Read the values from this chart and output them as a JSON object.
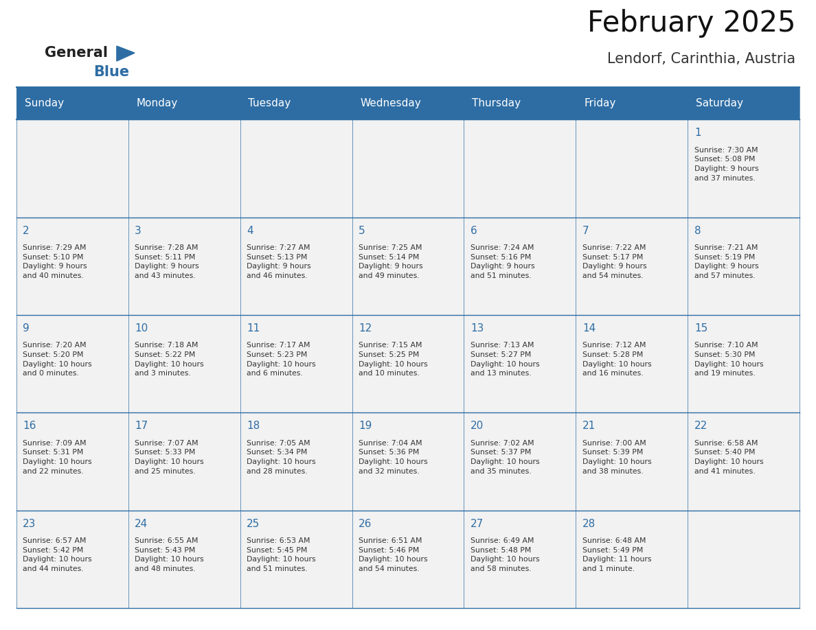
{
  "title": "February 2025",
  "subtitle": "Lendorf, Carinthia, Austria",
  "header_bg": "#2E6DA4",
  "header_text_color": "#FFFFFF",
  "cell_bg": "#F2F2F2",
  "day_headers": [
    "Sunday",
    "Monday",
    "Tuesday",
    "Wednesday",
    "Thursday",
    "Friday",
    "Saturday"
  ],
  "days_data": [
    {
      "day": 1,
      "col": 6,
      "row": 0,
      "sunrise": "7:30 AM",
      "sunset": "5:08 PM",
      "daylight": "9 hours\nand 37 minutes."
    },
    {
      "day": 2,
      "col": 0,
      "row": 1,
      "sunrise": "7:29 AM",
      "sunset": "5:10 PM",
      "daylight": "9 hours\nand 40 minutes."
    },
    {
      "day": 3,
      "col": 1,
      "row": 1,
      "sunrise": "7:28 AM",
      "sunset": "5:11 PM",
      "daylight": "9 hours\nand 43 minutes."
    },
    {
      "day": 4,
      "col": 2,
      "row": 1,
      "sunrise": "7:27 AM",
      "sunset": "5:13 PM",
      "daylight": "9 hours\nand 46 minutes."
    },
    {
      "day": 5,
      "col": 3,
      "row": 1,
      "sunrise": "7:25 AM",
      "sunset": "5:14 PM",
      "daylight": "9 hours\nand 49 minutes."
    },
    {
      "day": 6,
      "col": 4,
      "row": 1,
      "sunrise": "7:24 AM",
      "sunset": "5:16 PM",
      "daylight": "9 hours\nand 51 minutes."
    },
    {
      "day": 7,
      "col": 5,
      "row": 1,
      "sunrise": "7:22 AM",
      "sunset": "5:17 PM",
      "daylight": "9 hours\nand 54 minutes."
    },
    {
      "day": 8,
      "col": 6,
      "row": 1,
      "sunrise": "7:21 AM",
      "sunset": "5:19 PM",
      "daylight": "9 hours\nand 57 minutes."
    },
    {
      "day": 9,
      "col": 0,
      "row": 2,
      "sunrise": "7:20 AM",
      "sunset": "5:20 PM",
      "daylight": "10 hours\nand 0 minutes."
    },
    {
      "day": 10,
      "col": 1,
      "row": 2,
      "sunrise": "7:18 AM",
      "sunset": "5:22 PM",
      "daylight": "10 hours\nand 3 minutes."
    },
    {
      "day": 11,
      "col": 2,
      "row": 2,
      "sunrise": "7:17 AM",
      "sunset": "5:23 PM",
      "daylight": "10 hours\nand 6 minutes."
    },
    {
      "day": 12,
      "col": 3,
      "row": 2,
      "sunrise": "7:15 AM",
      "sunset": "5:25 PM",
      "daylight": "10 hours\nand 10 minutes."
    },
    {
      "day": 13,
      "col": 4,
      "row": 2,
      "sunrise": "7:13 AM",
      "sunset": "5:27 PM",
      "daylight": "10 hours\nand 13 minutes."
    },
    {
      "day": 14,
      "col": 5,
      "row": 2,
      "sunrise": "7:12 AM",
      "sunset": "5:28 PM",
      "daylight": "10 hours\nand 16 minutes."
    },
    {
      "day": 15,
      "col": 6,
      "row": 2,
      "sunrise": "7:10 AM",
      "sunset": "5:30 PM",
      "daylight": "10 hours\nand 19 minutes."
    },
    {
      "day": 16,
      "col": 0,
      "row": 3,
      "sunrise": "7:09 AM",
      "sunset": "5:31 PM",
      "daylight": "10 hours\nand 22 minutes."
    },
    {
      "day": 17,
      "col": 1,
      "row": 3,
      "sunrise": "7:07 AM",
      "sunset": "5:33 PM",
      "daylight": "10 hours\nand 25 minutes."
    },
    {
      "day": 18,
      "col": 2,
      "row": 3,
      "sunrise": "7:05 AM",
      "sunset": "5:34 PM",
      "daylight": "10 hours\nand 28 minutes."
    },
    {
      "day": 19,
      "col": 3,
      "row": 3,
      "sunrise": "7:04 AM",
      "sunset": "5:36 PM",
      "daylight": "10 hours\nand 32 minutes."
    },
    {
      "day": 20,
      "col": 4,
      "row": 3,
      "sunrise": "7:02 AM",
      "sunset": "5:37 PM",
      "daylight": "10 hours\nand 35 minutes."
    },
    {
      "day": 21,
      "col": 5,
      "row": 3,
      "sunrise": "7:00 AM",
      "sunset": "5:39 PM",
      "daylight": "10 hours\nand 38 minutes."
    },
    {
      "day": 22,
      "col": 6,
      "row": 3,
      "sunrise": "6:58 AM",
      "sunset": "5:40 PM",
      "daylight": "10 hours\nand 41 minutes."
    },
    {
      "day": 23,
      "col": 0,
      "row": 4,
      "sunrise": "6:57 AM",
      "sunset": "5:42 PM",
      "daylight": "10 hours\nand 44 minutes."
    },
    {
      "day": 24,
      "col": 1,
      "row": 4,
      "sunrise": "6:55 AM",
      "sunset": "5:43 PM",
      "daylight": "10 hours\nand 48 minutes."
    },
    {
      "day": 25,
      "col": 2,
      "row": 4,
      "sunrise": "6:53 AM",
      "sunset": "5:45 PM",
      "daylight": "10 hours\nand 51 minutes."
    },
    {
      "day": 26,
      "col": 3,
      "row": 4,
      "sunrise": "6:51 AM",
      "sunset": "5:46 PM",
      "daylight": "10 hours\nand 54 minutes."
    },
    {
      "day": 27,
      "col": 4,
      "row": 4,
      "sunrise": "6:49 AM",
      "sunset": "5:48 PM",
      "daylight": "10 hours\nand 58 minutes."
    },
    {
      "day": 28,
      "col": 5,
      "row": 4,
      "sunrise": "6:48 AM",
      "sunset": "5:49 PM",
      "daylight": "11 hours\nand 1 minute."
    }
  ],
  "num_rows": 5,
  "num_cols": 7,
  "line_color": "#2E6DA4",
  "day_number_color": "#2E6DA4",
  "text_color": "#333333",
  "background_color": "#FFFFFF"
}
